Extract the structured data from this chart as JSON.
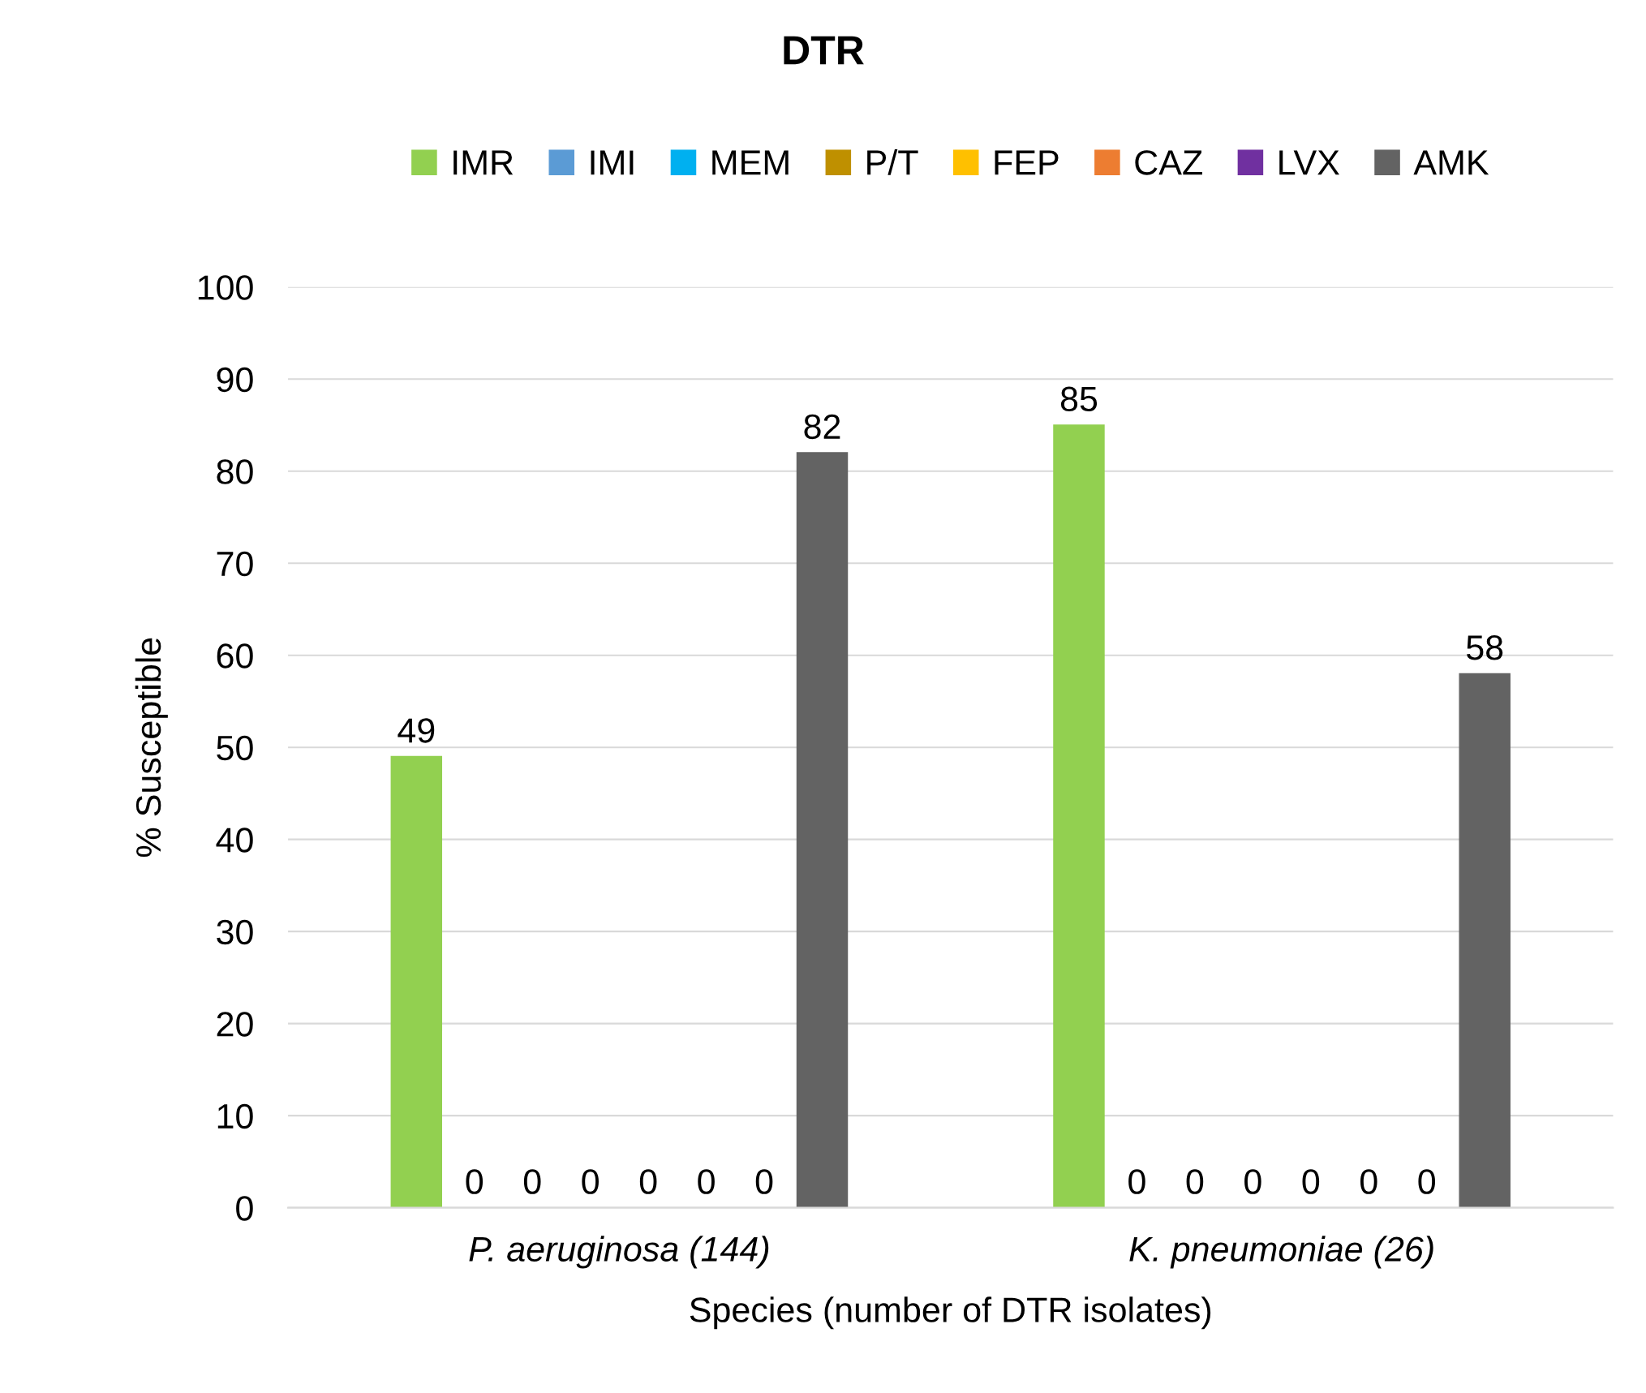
{
  "chart_data": {
    "type": "bar",
    "title": "DTR",
    "xlabel": "Species (number of DTR isolates)",
    "ylabel": "% Susceptible",
    "categories": [
      "P. aeruginosa (144)",
      "K. pneumoniae (26)"
    ],
    "series": [
      {
        "name": "IMR",
        "color": "#92d050",
        "values": [
          49,
          85
        ]
      },
      {
        "name": "IMI",
        "color": "#5b9bd5",
        "values": [
          0,
          0
        ]
      },
      {
        "name": "MEM",
        "color": "#00b0f0",
        "values": [
          0,
          0
        ]
      },
      {
        "name": "P/T",
        "color": "#bf9000",
        "values": [
          0,
          0
        ]
      },
      {
        "name": "FEP",
        "color": "#ffc000",
        "values": [
          0,
          0
        ]
      },
      {
        "name": "CAZ",
        "color": "#ed7d31",
        "values": [
          0,
          0
        ]
      },
      {
        "name": "LVX",
        "color": "#7030a0",
        "values": [
          0,
          0
        ]
      },
      {
        "name": "AMK",
        "color": "#636363",
        "values": [
          82,
          58
        ]
      }
    ],
    "ylim": [
      0,
      100
    ],
    "yticks": [
      0,
      10,
      20,
      30,
      40,
      50,
      60,
      70,
      80,
      90,
      100
    ],
    "grid": "y",
    "legend": "top",
    "data_labels": true
  }
}
